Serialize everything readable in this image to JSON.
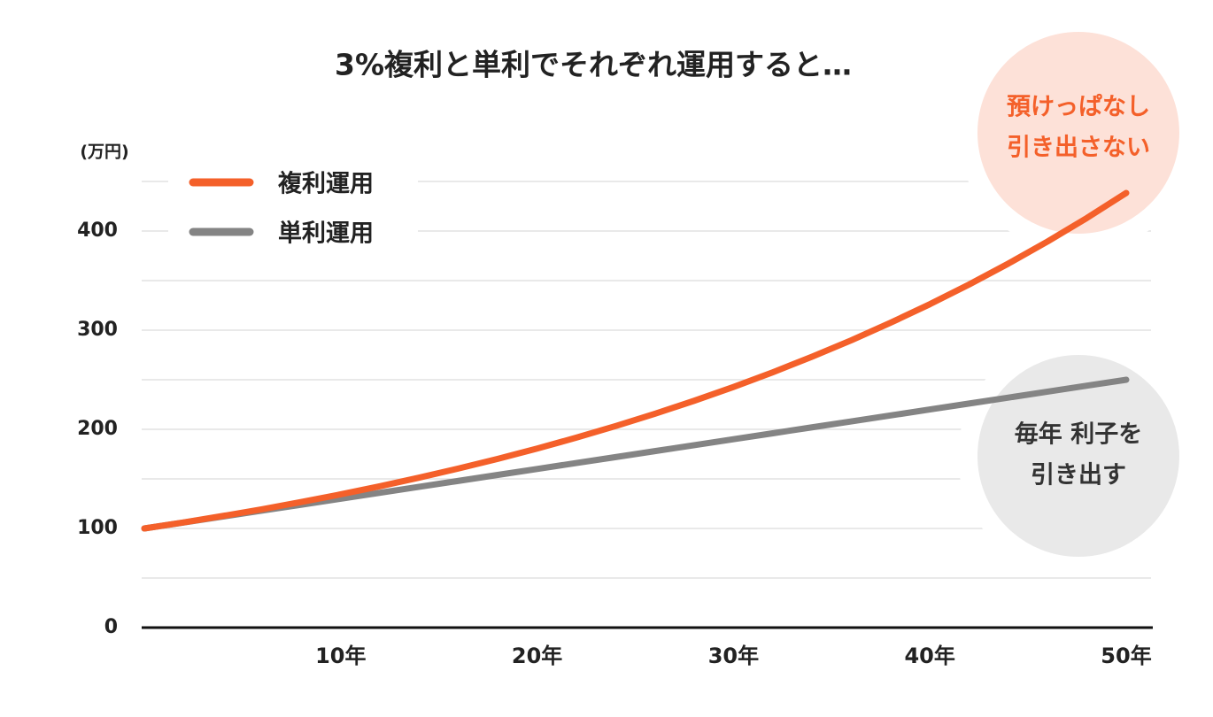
{
  "chart_data": {
    "type": "line",
    "title": "3%複利と単利でそれぞれ運用すると…",
    "y_label": "(万円)",
    "x": [
      0,
      2,
      4,
      6,
      8,
      10,
      12,
      14,
      16,
      18,
      20,
      22,
      24,
      26,
      28,
      30,
      32,
      34,
      36,
      38,
      40,
      42,
      44,
      46,
      48,
      50
    ],
    "series": [
      {
        "name": "複利運用",
        "color": "#f4602a",
        "values": [
          100,
          106.1,
          112.6,
          119.4,
          126.7,
          134.4,
          142.6,
          151.3,
          160.5,
          170.2,
          180.6,
          191.6,
          203.3,
          215.7,
          228.8,
          242.7,
          257.5,
          273.2,
          289.8,
          307.5,
          326.2,
          346.1,
          367.2,
          389.5,
          413.2,
          438.4
        ]
      },
      {
        "name": "単利運用",
        "color": "#848484",
        "values": [
          100,
          106,
          112,
          118,
          124,
          130,
          136,
          142,
          148,
          154,
          160,
          166,
          172,
          178,
          184,
          190,
          196,
          202,
          208,
          214,
          220,
          226,
          232,
          238,
          244,
          250
        ]
      }
    ],
    "xlim": [
      0,
      50
    ],
    "xticks": [
      {
        "value": 10,
        "label": "10年"
      },
      {
        "value": 20,
        "label": "20年"
      },
      {
        "value": 30,
        "label": "30年"
      },
      {
        "value": 40,
        "label": "40年"
      },
      {
        "value": 50,
        "label": "50年"
      }
    ],
    "ylim": [
      0,
      450
    ],
    "yticks": [
      0,
      100,
      200,
      300,
      400
    ],
    "ygrid": [
      50,
      100,
      150,
      200,
      250,
      300,
      350,
      400,
      450
    ],
    "grid": true,
    "legend": "upper left",
    "annotations": [
      {
        "lines": [
          "預けっぱなし",
          "引き出さない"
        ],
        "color": "#f4602a",
        "fill": "#fde1d8"
      },
      {
        "lines": [
          "毎年 利子を",
          "引き出す"
        ],
        "color": "#333333",
        "fill": "#e9e9e9"
      }
    ]
  }
}
